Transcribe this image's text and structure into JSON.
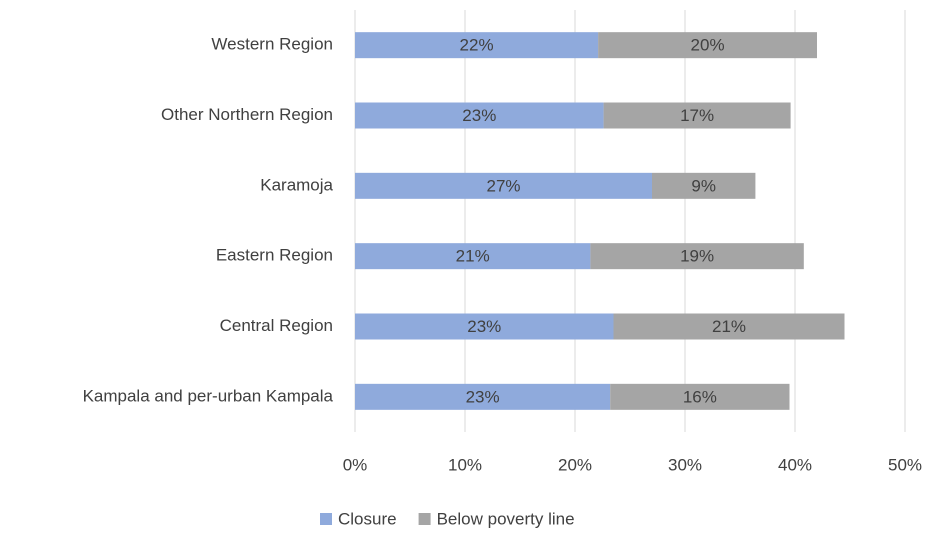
{
  "chart_data": {
    "type": "stacked_bar_horizontal",
    "categories": [
      "Western Region",
      "Other Northern Region",
      "Karamoja",
      "Eastern Region",
      "Central Region",
      "Kampala and per-urban Kampala"
    ],
    "series": [
      {
        "name": "Closure",
        "color": "#8faadc",
        "values": [
          22.1,
          22.6,
          27.0,
          21.4,
          23.5,
          23.2
        ],
        "value_labels": [
          "22%",
          "23%",
          "27%",
          "21%",
          "23%",
          "23%"
        ]
      },
      {
        "name": "Below poverty line",
        "color": "#a5a5a5",
        "values": [
          19.9,
          17.0,
          9.4,
          19.4,
          21.0,
          16.3
        ],
        "value_labels": [
          "20%",
          "17%",
          "9%",
          "19%",
          "21%",
          "16%"
        ]
      }
    ],
    "xlim": [
      0,
      50
    ],
    "xticks": [
      {
        "value": 0,
        "label": "0%"
      },
      {
        "value": 10,
        "label": "10%"
      },
      {
        "value": 20,
        "label": "20%"
      },
      {
        "value": 30,
        "label": "30%"
      },
      {
        "value": 40,
        "label": "40%"
      },
      {
        "value": 50,
        "label": "50%"
      }
    ],
    "grid": true,
    "legend": "bottom"
  }
}
